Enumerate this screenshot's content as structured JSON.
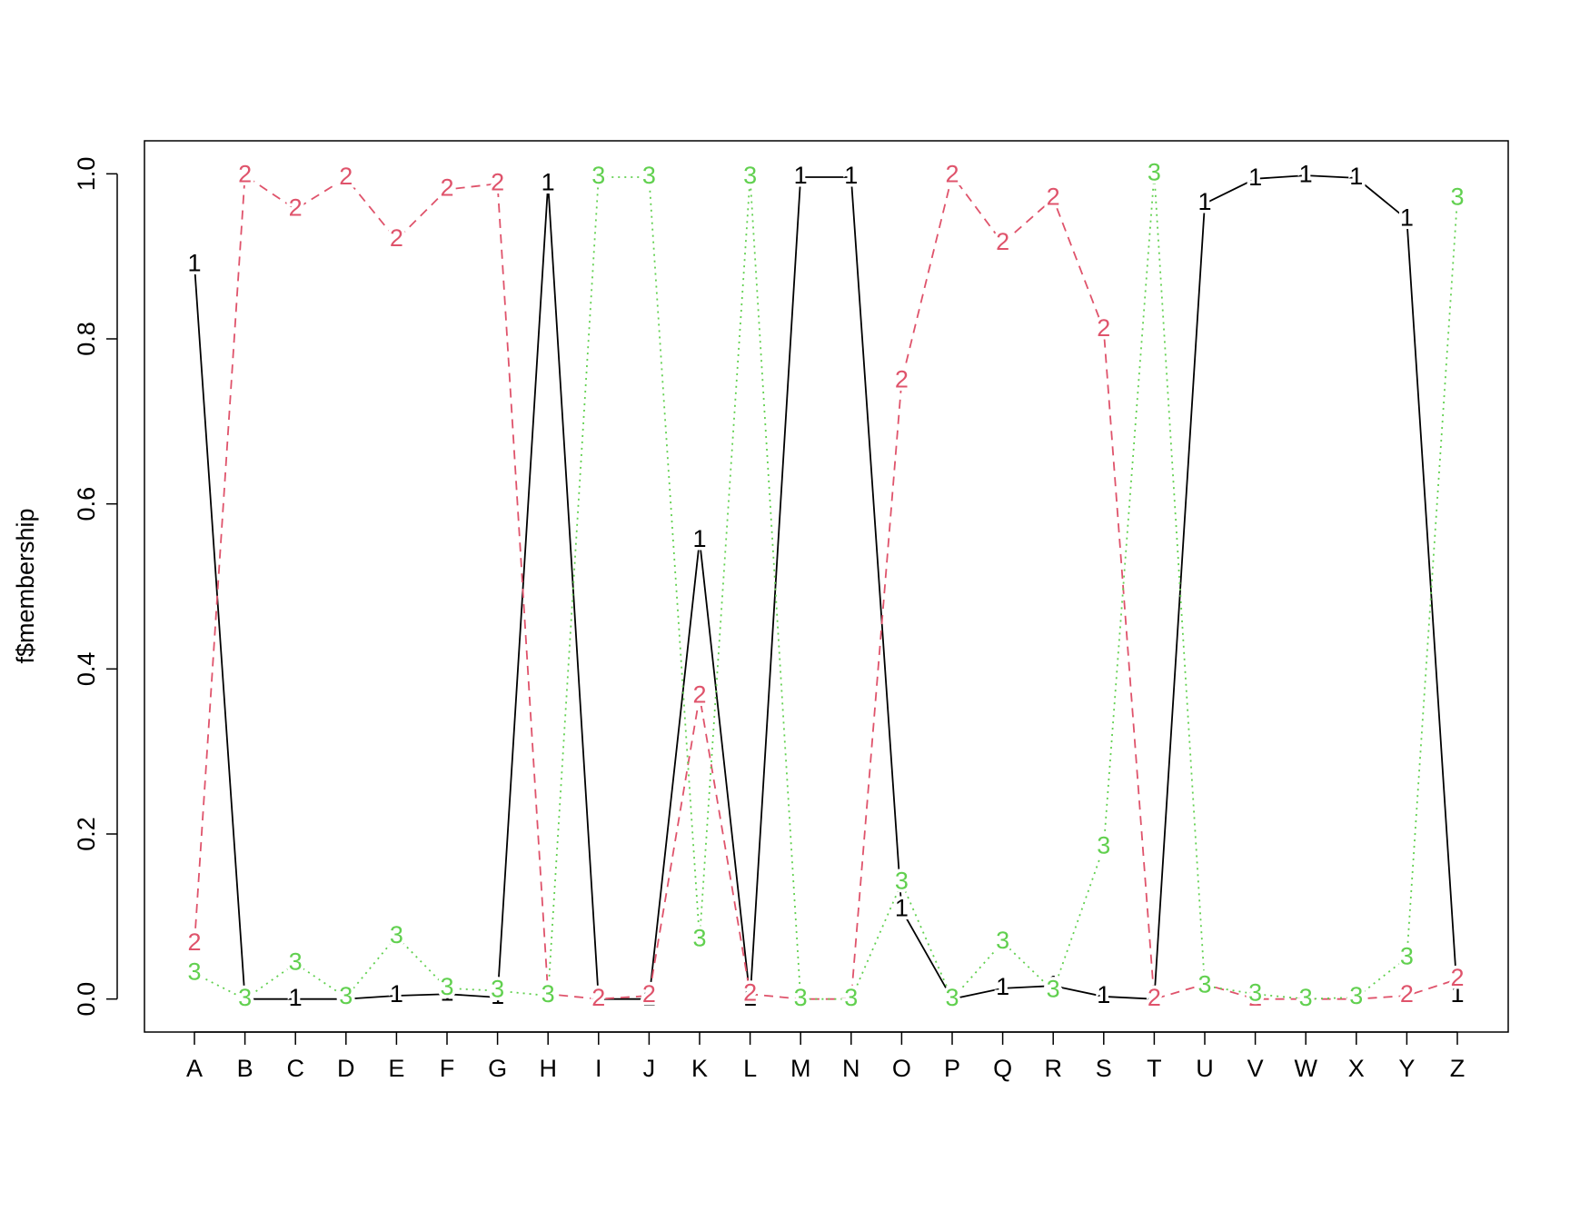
{
  "chart_data": {
    "type": "line",
    "ylabel": "f$membership",
    "categories": [
      "A",
      "B",
      "C",
      "D",
      "E",
      "F",
      "G",
      "H",
      "I",
      "J",
      "K",
      "L",
      "M",
      "N",
      "O",
      "P",
      "Q",
      "R",
      "S",
      "T",
      "U",
      "V",
      "W",
      "X",
      "Y",
      "Z"
    ],
    "series": [
      {
        "name": "1",
        "color": "#000000",
        "dash": "none",
        "values": [
          0.89,
          0.0,
          0.0,
          0.0,
          0.004,
          0.006,
          0.002,
          0.988,
          0.0,
          0.0,
          0.556,
          0.0,
          0.996,
          0.996,
          0.108,
          0.0,
          0.013,
          0.016,
          0.003,
          0.0,
          0.964,
          0.994,
          0.998,
          0.995,
          0.945,
          0.004
        ]
      },
      {
        "name": "2",
        "color": "#DF536B",
        "dash": "10 7",
        "values": [
          0.067,
          0.998,
          0.957,
          0.995,
          0.92,
          0.981,
          0.988,
          0.006,
          0.0,
          0.004,
          0.367,
          0.006,
          0.0,
          0.0,
          0.749,
          0.998,
          0.916,
          0.97,
          0.811,
          0.0,
          0.018,
          0.0,
          0.0,
          0.0,
          0.004,
          0.024
        ]
      },
      {
        "name": "3",
        "color": "#61D04F",
        "dash": "2 5",
        "values": [
          0.031,
          0.0,
          0.043,
          0.002,
          0.076,
          0.013,
          0.01,
          0.004,
          0.996,
          0.996,
          0.072,
          0.996,
          0.0,
          0.0,
          0.141,
          0.0,
          0.069,
          0.01,
          0.184,
          1.0,
          0.016,
          0.006,
          0.0,
          0.002,
          0.05,
          0.97
        ]
      }
    ],
    "ylim": [
      -0.04,
      1.04
    ],
    "yticks": [
      {
        "value": 0,
        "label": "0.0"
      },
      {
        "value": 0.2,
        "label": "0.2"
      },
      {
        "value": 0.4,
        "label": "0.4"
      },
      {
        "value": 0.6,
        "label": "0.6"
      },
      {
        "value": 0.8,
        "label": "0.8"
      },
      {
        "value": 1,
        "label": "1.0"
      }
    ]
  }
}
